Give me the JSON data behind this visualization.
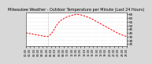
{
  "title": "Milwaukee Weather - Outdoor Temperature per Minute (Last 24 Hours)",
  "line_color": "#ff0000",
  "fig_facecolor": "#d8d8d8",
  "ax_facecolor": "#ffffff",
  "vline_color": "#888888",
  "ylim": [
    22,
    68
  ],
  "yticks": [
    25,
    30,
    35,
    40,
    45,
    50,
    55,
    60,
    65
  ],
  "vline_x": 0.22,
  "x_values": [
    0.0,
    0.02,
    0.04,
    0.06,
    0.08,
    0.1,
    0.12,
    0.14,
    0.16,
    0.18,
    0.2,
    0.22,
    0.24,
    0.26,
    0.28,
    0.3,
    0.32,
    0.34,
    0.36,
    0.38,
    0.4,
    0.42,
    0.44,
    0.46,
    0.48,
    0.5,
    0.52,
    0.54,
    0.56,
    0.58,
    0.6,
    0.62,
    0.64,
    0.66,
    0.68,
    0.7,
    0.72,
    0.74,
    0.76,
    0.78,
    0.8,
    0.82,
    0.84,
    0.86,
    0.88,
    0.9,
    0.92,
    0.94,
    0.96,
    0.98,
    1.0
  ],
  "y_values": [
    40,
    39.5,
    39,
    38.5,
    38,
    37.5,
    37,
    36.5,
    36,
    35.5,
    35.2,
    35,
    37,
    40,
    44,
    49,
    53,
    56,
    58,
    59.5,
    61,
    62,
    63,
    63.8,
    64.5,
    65,
    64.8,
    64.5,
    63.8,
    63,
    62,
    61,
    60,
    58.5,
    57,
    55.5,
    54,
    52.5,
    51,
    49.5,
    48,
    46.5,
    45,
    43.5,
    42,
    40.5,
    39,
    38,
    37,
    36,
    35
  ],
  "n_xticks": 25,
  "title_fontsize": 3.5,
  "tick_fontsize": 3.0,
  "linewidth": 0.7
}
